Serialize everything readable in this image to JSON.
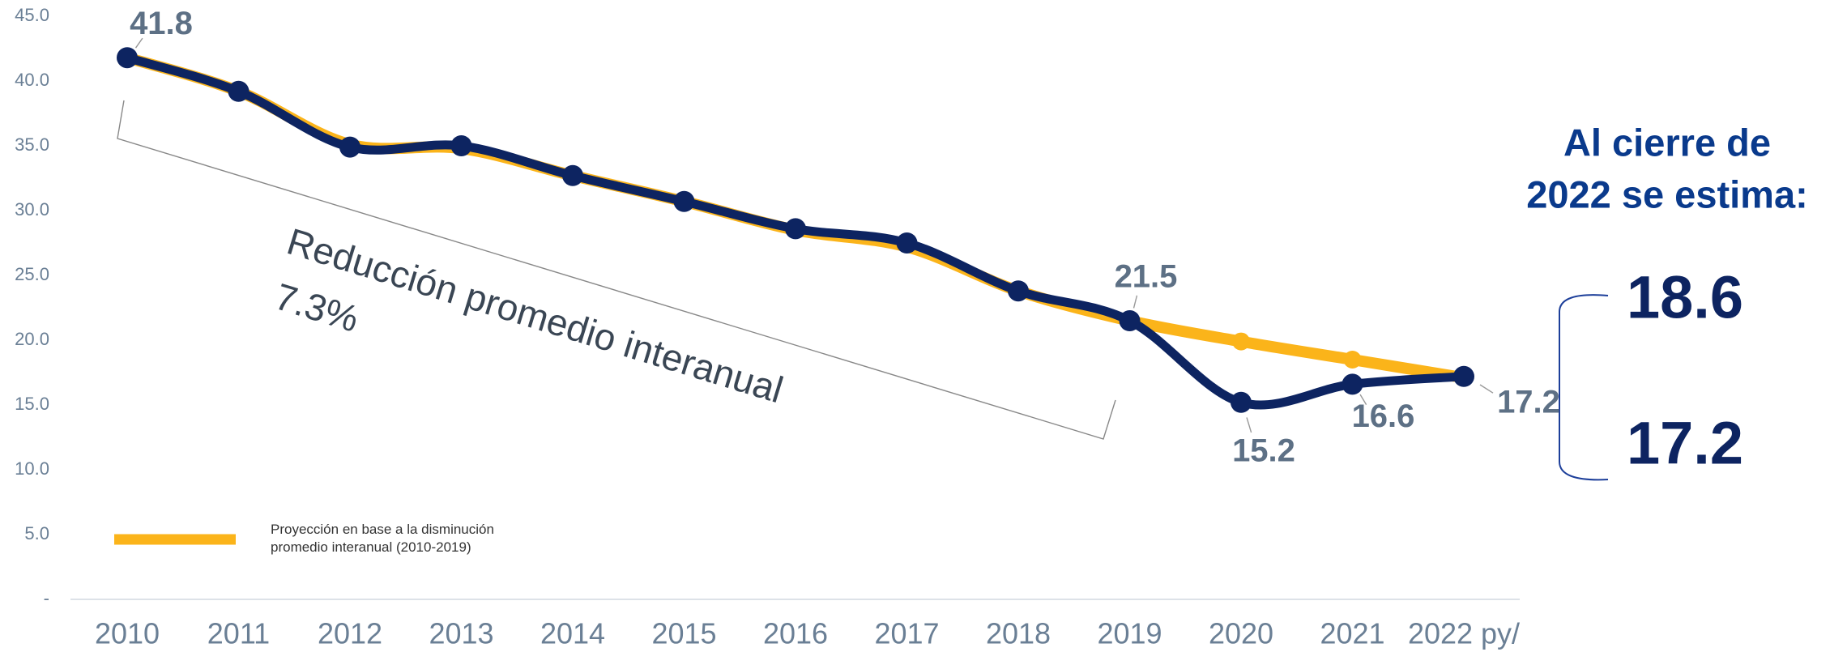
{
  "chart_data": {
    "type": "line",
    "categories": [
      "2010",
      "2011",
      "2012",
      "2013",
      "2014",
      "2015",
      "2016",
      "2017",
      "2018",
      "2019",
      "2020",
      "2021",
      "2022 py/"
    ],
    "series": [
      {
        "name": "Proyección en base a la disminución promedio interanual (2010-2019)",
        "color": "#fbb41a",
        "values": [
          41.8,
          39.2,
          35.1,
          34.8,
          32.7,
          30.7,
          28.5,
          27.2,
          23.8,
          21.5,
          19.9,
          18.5,
          17.1
        ]
      },
      {
        "color": "#0d2461",
        "values": [
          41.8,
          39.2,
          34.9,
          35.0,
          32.7,
          30.7,
          28.6,
          27.5,
          23.8,
          21.5,
          15.2,
          16.6,
          17.2
        ],
        "value_labels": [
          "41.8",
          null,
          null,
          null,
          null,
          null,
          null,
          null,
          null,
          "21.5",
          "15.2",
          "16.6",
          "17.2"
        ]
      }
    ],
    "ylim": [
      0,
      45
    ],
    "yticks": [
      {
        "value": 0,
        "label": "-"
      },
      {
        "value": 5,
        "label": "5.0"
      },
      {
        "value": 10,
        "label": "10.0"
      },
      {
        "value": 15,
        "label": "15.0"
      },
      {
        "value": 20,
        "label": "20.0"
      },
      {
        "value": 25,
        "label": "25.0"
      },
      {
        "value": 30,
        "label": "30.0"
      },
      {
        "value": 35,
        "label": "35.0"
      },
      {
        "value": 40,
        "label": "40.0"
      },
      {
        "value": 45,
        "label": "45.0"
      }
    ],
    "annotations": {
      "reduction_text": "Reducción promedio interanual",
      "reduction_value": "7.3%",
      "estimate_title_1": "Al cierre de",
      "estimate_title_2": "2022 se estima:",
      "estimate_high": "18.6",
      "estimate_low": "17.2"
    }
  }
}
